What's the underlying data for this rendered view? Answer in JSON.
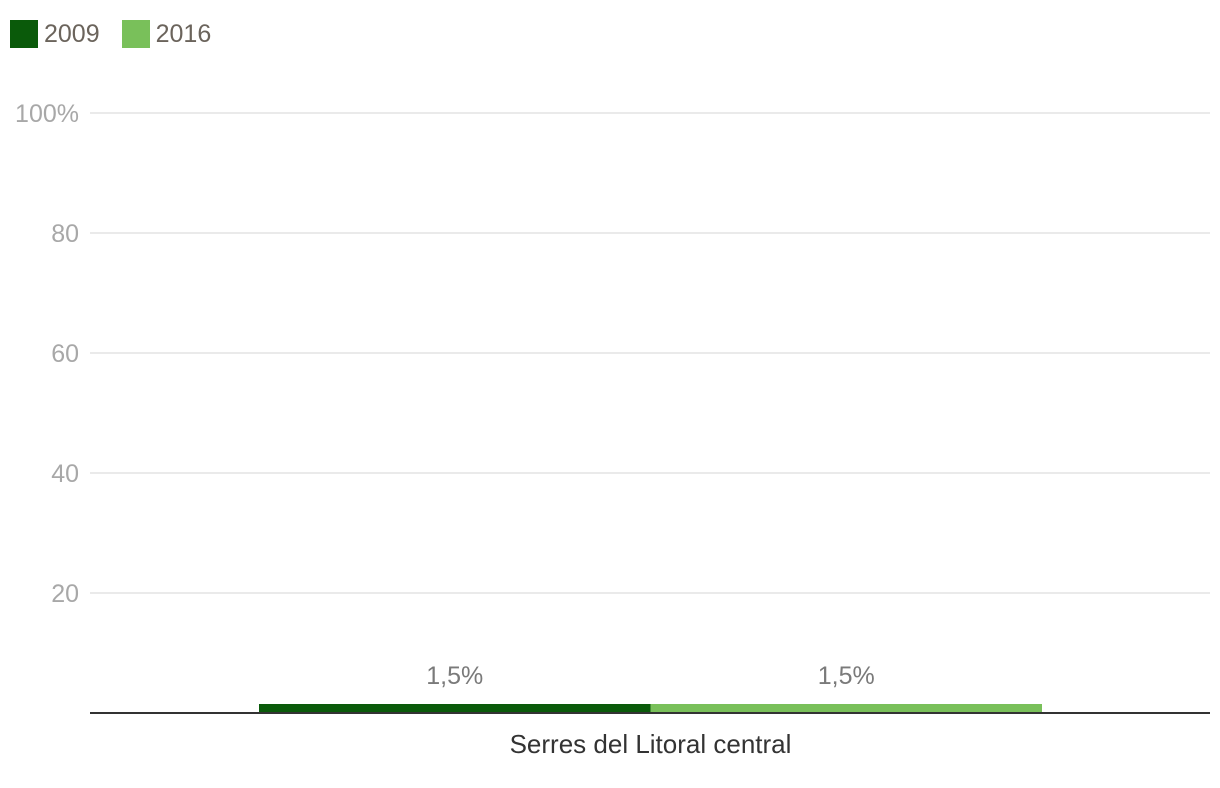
{
  "chart_data": {
    "type": "bar",
    "categories": [
      "Serres del Litoral central"
    ],
    "series": [
      {
        "name": "2009",
        "values": [
          1.5
        ],
        "color": "#0a5a0a",
        "label": "1,5%"
      },
      {
        "name": "2016",
        "values": [
          1.5
        ],
        "color": "#79c05a",
        "label": "1,5%"
      }
    ],
    "ylim": [
      0,
      100
    ],
    "yticks": [
      {
        "value": 20,
        "label": "20"
      },
      {
        "value": 40,
        "label": "40"
      },
      {
        "value": 60,
        "label": "60"
      },
      {
        "value": 80,
        "label": "80"
      },
      {
        "value": 100,
        "label": "100%"
      }
    ],
    "grid": true,
    "legend_position": "top-left",
    "gridline_color": "#e3e3e3",
    "axis_color": "#333333"
  }
}
